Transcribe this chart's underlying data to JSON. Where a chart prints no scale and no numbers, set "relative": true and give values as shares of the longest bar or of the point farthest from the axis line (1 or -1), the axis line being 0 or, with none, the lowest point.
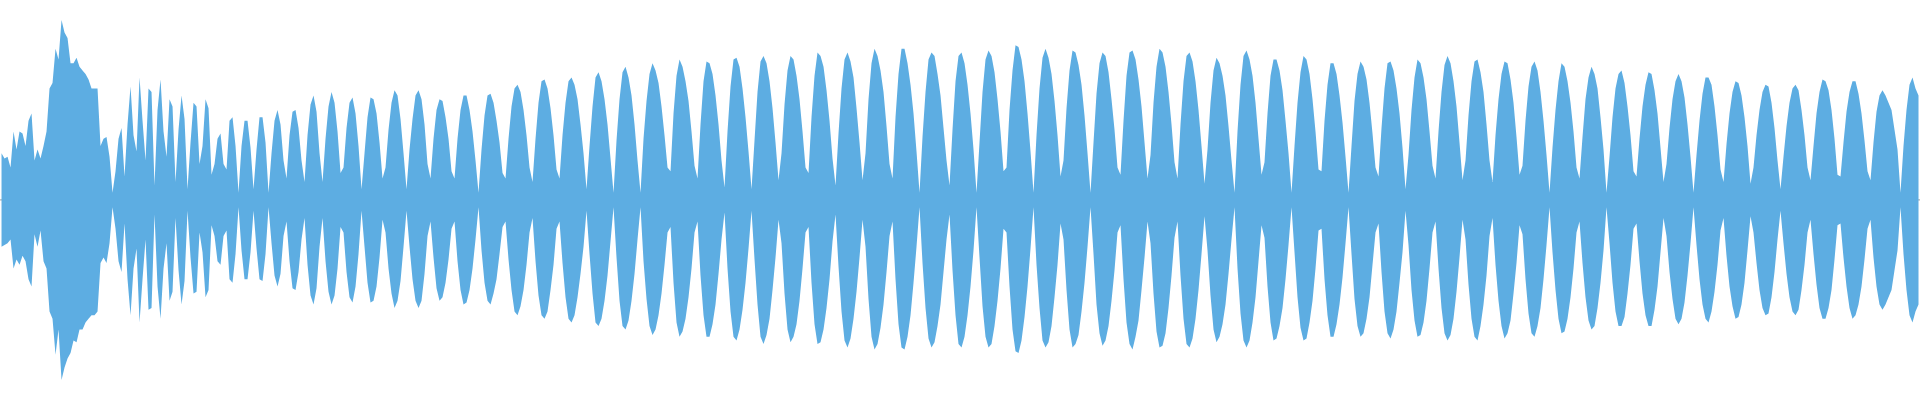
{
  "chart_data": {
    "type": "area",
    "relative": true,
    "categories": [
      null,
      null,
      null,
      null,
      null,
      null,
      null,
      null,
      null,
      null,
      null,
      null,
      null,
      null,
      null,
      null,
      null,
      null,
      null,
      null,
      null,
      null,
      null,
      null,
      null,
      null,
      null,
      null,
      null,
      null,
      null,
      null,
      null,
      null,
      null,
      null,
      null,
      null,
      null,
      null,
      null,
      null,
      null,
      null,
      null,
      null,
      null,
      null,
      null,
      null,
      null,
      null,
      null,
      null,
      null,
      null,
      null,
      null,
      null,
      null,
      null,
      null,
      null,
      null,
      null,
      null,
      null,
      null,
      null,
      null,
      null,
      null,
      null,
      null,
      null,
      null,
      null,
      null,
      null,
      null,
      null,
      null,
      null,
      null,
      null,
      null,
      null,
      null,
      null,
      null,
      null,
      null,
      null,
      null,
      null,
      null,
      null,
      null,
      null,
      null,
      null,
      null,
      null,
      null,
      null,
      null,
      null,
      null,
      null,
      null,
      null,
      null,
      null,
      null,
      null,
      null,
      null,
      null,
      null,
      null,
      null,
      null,
      null,
      null,
      null,
      null,
      null,
      null,
      null,
      null,
      null,
      null,
      null,
      null,
      null,
      null,
      null,
      null,
      null,
      null,
      null,
      null,
      null,
      null,
      null,
      null,
      null,
      null,
      null,
      null,
      null,
      null,
      null,
      null,
      null,
      null,
      null,
      null,
      null,
      null,
      null,
      null,
      null,
      null,
      null,
      null,
      null,
      null,
      null,
      null,
      null,
      null,
      null,
      null,
      null,
      null,
      null,
      null,
      null,
      null,
      null,
      null,
      null,
      null,
      null,
      null,
      null,
      null,
      null,
      null,
      null,
      null,
      null,
      null,
      null,
      null,
      null,
      null,
      null,
      null,
      null,
      null,
      null,
      null,
      null,
      null,
      null,
      null,
      null,
      null,
      null,
      null,
      null,
      null,
      null,
      null,
      null,
      null,
      null,
      null,
      null,
      null,
      null,
      null,
      null,
      null,
      null,
      null,
      null,
      null,
      null,
      null,
      null,
      null,
      null,
      null,
      null,
      null,
      null,
      null,
      null,
      null,
      null,
      null,
      null,
      null,
      null,
      null,
      null,
      null,
      null,
      null,
      null,
      null,
      null,
      null,
      null,
      null,
      null,
      null,
      null,
      null,
      null,
      null,
      null,
      null,
      null,
      null,
      null,
      null,
      null,
      null,
      null,
      null,
      null,
      null,
      null,
      null,
      null,
      null,
      null,
      null,
      null,
      null,
      null,
      null,
      null,
      null,
      null,
      null,
      null,
      null,
      null,
      null,
      null,
      null,
      null,
      null,
      null,
      null,
      null,
      null,
      null,
      null,
      null,
      null,
      null,
      null,
      null,
      null,
      null,
      null,
      null,
      null,
      null,
      null,
      null,
      null,
      null,
      null,
      null,
      null,
      null,
      null,
      null,
      null,
      null,
      null,
      null,
      null,
      null,
      null,
      null,
      null,
      null,
      null,
      null,
      null,
      null,
      null,
      null,
      null,
      null,
      null,
      null,
      null,
      null,
      null,
      null,
      null,
      null,
      null,
      null,
      null,
      null,
      null,
      null,
      null,
      null,
      null,
      null,
      null,
      null,
      null,
      null,
      null,
      null,
      null,
      null,
      null,
      null,
      null,
      null,
      null,
      null,
      null,
      null,
      null,
      null,
      null,
      null,
      null,
      null,
      null,
      null,
      null,
      null,
      null,
      null,
      null,
      null,
      null,
      null,
      null,
      null,
      null,
      null,
      null,
      null,
      null,
      null,
      null,
      null,
      null,
      null,
      null,
      null,
      null,
      null,
      null,
      null,
      null,
      null,
      null,
      null,
      null,
      null,
      null,
      null,
      null,
      null,
      null,
      null,
      null,
      null,
      null,
      null,
      null,
      null,
      null,
      null,
      null,
      null,
      null,
      null,
      null,
      null,
      null,
      null,
      null,
      null,
      null,
      null,
      null,
      null,
      null,
      null,
      null,
      null,
      null,
      null,
      null,
      null,
      null,
      null,
      null,
      null,
      null,
      null,
      null,
      null,
      null,
      null,
      null,
      null,
      null,
      null,
      null,
      null,
      null,
      null,
      null,
      null,
      null,
      null,
      null,
      null,
      null,
      null,
      null,
      null,
      null,
      null,
      null,
      null,
      null,
      null,
      null,
      null,
      null,
      null,
      null,
      null,
      null,
      null,
      null,
      null,
      null,
      null,
      null,
      null,
      null,
      null,
      null,
      null,
      null,
      null,
      null,
      null,
      null,
      null,
      null,
      null,
      null,
      null,
      null,
      null,
      null,
      null,
      null,
      null,
      null,
      null,
      null,
      null,
      null,
      null,
      null,
      null,
      null,
      null,
      null,
      null,
      null,
      null,
      null,
      null,
      null,
      null,
      null,
      null,
      null,
      null,
      null,
      null,
      null,
      null,
      null,
      null,
      null,
      null,
      null,
      null,
      null,
      null,
      null,
      null,
      null,
      null,
      null,
      null,
      null,
      null,
      null,
      null,
      null,
      null,
      null,
      null,
      null,
      null,
      null,
      null,
      null,
      null,
      null,
      null,
      null,
      null,
      null,
      null,
      null,
      null,
      null,
      null,
      null,
      null,
      null,
      null,
      null,
      null,
      null,
      null,
      null,
      null,
      null,
      null,
      null,
      null,
      null,
      null,
      null,
      null,
      null,
      null,
      null,
      null,
      null,
      null,
      null,
      null,
      null,
      null,
      null,
      null,
      null,
      null,
      null,
      null,
      null,
      null,
      null,
      null,
      null,
      null,
      null,
      null,
      null,
      null,
      null,
      null,
      null,
      null,
      null,
      null,
      null,
      null,
      null,
      null,
      null
    ],
    "series": [
      {
        "color": "#5dade2",
        "values": [
          0.26,
          0.23,
          0.24,
          0.18,
          0.38,
          0.28,
          0.38,
          0.37,
          0.3,
          0.44,
          0.48,
          0.22,
          0.28,
          0.23,
          0.3,
          0.38,
          0.62,
          0.65,
          0.84,
          0.78,
          1.0,
          0.93,
          0.9,
          0.76,
          0.76,
          0.79,
          0.74,
          0.72,
          0.7,
          0.67,
          0.62,
          0.62,
          0.62,
          0.3,
          0.34,
          0.35,
          0.24,
          0.04,
          0.16,
          0.34,
          0.4,
          0.13,
          0.42,
          0.63,
          0.36,
          0.27,
          0.68,
          0.44,
          0.22,
          0.62,
          0.6,
          0.08,
          0.5,
          0.67,
          0.38,
          0.24,
          0.56,
          0.52,
          0.1,
          0.39,
          0.58,
          0.45,
          0.06,
          0.32,
          0.54,
          0.52,
          0.2,
          0.3,
          0.56,
          0.51,
          0.14,
          0.2,
          0.34,
          0.37,
          0.2,
          0.17,
          0.44,
          0.46,
          0.3,
          0.04,
          0.3,
          0.44,
          0.44,
          0.29,
          0.06,
          0.28,
          0.46,
          0.46,
          0.32,
          0.04,
          0.26,
          0.44,
          0.5,
          0.42,
          0.22,
          0.12,
          0.36,
          0.49,
          0.5,
          0.4,
          0.22,
          0.1,
          0.36,
          0.53,
          0.58,
          0.49,
          0.26,
          0.1,
          0.34,
          0.52,
          0.6,
          0.54,
          0.38,
          0.15,
          0.18,
          0.4,
          0.54,
          0.57,
          0.48,
          0.3,
          0.06,
          0.26,
          0.46,
          0.57,
          0.56,
          0.48,
          0.32,
          0.12,
          0.18,
          0.39,
          0.54,
          0.61,
          0.58,
          0.45,
          0.26,
          0.06,
          0.28,
          0.45,
          0.58,
          0.61,
          0.56,
          0.42,
          0.2,
          0.12,
          0.34,
          0.5,
          0.56,
          0.55,
          0.46,
          0.34,
          0.16,
          0.12,
          0.34,
          0.5,
          0.58,
          0.58,
          0.5,
          0.38,
          0.22,
          0.04,
          0.28,
          0.47,
          0.58,
          0.59,
          0.54,
          0.44,
          0.32,
          0.15,
          0.12,
          0.34,
          0.52,
          0.62,
          0.64,
          0.6,
          0.5,
          0.36,
          0.18,
          0.1,
          0.34,
          0.54,
          0.66,
          0.67,
          0.62,
          0.51,
          0.36,
          0.17,
          0.12,
          0.36,
          0.54,
          0.66,
          0.68,
          0.64,
          0.56,
          0.42,
          0.26,
          0.06,
          0.3,
          0.52,
          0.68,
          0.71,
          0.66,
          0.56,
          0.42,
          0.23,
          0.04,
          0.33,
          0.56,
          0.71,
          0.74,
          0.68,
          0.58,
          0.42,
          0.22,
          0.04,
          0.34,
          0.55,
          0.7,
          0.76,
          0.72,
          0.65,
          0.52,
          0.36,
          0.18,
          0.16,
          0.48,
          0.69,
          0.78,
          0.74,
          0.66,
          0.55,
          0.38,
          0.19,
          0.12,
          0.42,
          0.66,
          0.77,
          0.76,
          0.7,
          0.58,
          0.42,
          0.22,
          0.07,
          0.38,
          0.63,
          0.78,
          0.79,
          0.74,
          0.62,
          0.46,
          0.27,
          0.06,
          0.33,
          0.6,
          0.77,
          0.8,
          0.76,
          0.66,
          0.51,
          0.32,
          0.11,
          0.26,
          0.53,
          0.72,
          0.8,
          0.78,
          0.69,
          0.56,
          0.38,
          0.18,
          0.15,
          0.46,
          0.69,
          0.82,
          0.8,
          0.74,
          0.61,
          0.44,
          0.23,
          0.08,
          0.37,
          0.62,
          0.78,
          0.82,
          0.77,
          0.68,
          0.51,
          0.32,
          0.11,
          0.26,
          0.56,
          0.76,
          0.84,
          0.8,
          0.72,
          0.6,
          0.41,
          0.2,
          0.12,
          0.46,
          0.7,
          0.84,
          0.84,
          0.76,
          0.64,
          0.48,
          0.27,
          0.04,
          0.35,
          0.6,
          0.78,
          0.82,
          0.8,
          0.7,
          0.58,
          0.4,
          0.22,
          0.08,
          0.39,
          0.66,
          0.8,
          0.82,
          0.76,
          0.64,
          0.48,
          0.28,
          0.04,
          0.32,
          0.6,
          0.78,
          0.83,
          0.8,
          0.71,
          0.56,
          0.38,
          0.16,
          0.18,
          0.5,
          0.72,
          0.86,
          0.85,
          0.78,
          0.66,
          0.48,
          0.27,
          0.04,
          0.36,
          0.62,
          0.79,
          0.84,
          0.79,
          0.7,
          0.55,
          0.36,
          0.13,
          0.22,
          0.51,
          0.72,
          0.83,
          0.82,
          0.75,
          0.64,
          0.47,
          0.26,
          0.04,
          0.32,
          0.59,
          0.76,
          0.82,
          0.8,
          0.71,
          0.56,
          0.39,
          0.18,
          0.14,
          0.44,
          0.69,
          0.82,
          0.83,
          0.78,
          0.67,
          0.52,
          0.32,
          0.12,
          0.25,
          0.54,
          0.74,
          0.84,
          0.82,
          0.74,
          0.6,
          0.42,
          0.21,
          0.12,
          0.42,
          0.66,
          0.8,
          0.82,
          0.77,
          0.66,
          0.5,
          0.3,
          0.09,
          0.28,
          0.54,
          0.72,
          0.79,
          0.76,
          0.69,
          0.58,
          0.41,
          0.22,
          0.04,
          0.38,
          0.64,
          0.8,
          0.83,
          0.78,
          0.69,
          0.54,
          0.34,
          0.14,
          0.21,
          0.48,
          0.69,
          0.78,
          0.78,
          0.72,
          0.61,
          0.44,
          0.26,
          0.04,
          0.3,
          0.54,
          0.71,
          0.8,
          0.78,
          0.7,
          0.56,
          0.38,
          0.17,
          0.16,
          0.44,
          0.64,
          0.76,
          0.76,
          0.7,
          0.58,
          0.43,
          0.24,
          0.04,
          0.3,
          0.55,
          0.7,
          0.77,
          0.74,
          0.67,
          0.54,
          0.37,
          0.18,
          0.13,
          0.4,
          0.62,
          0.76,
          0.77,
          0.72,
          0.62,
          0.48,
          0.29,
          0.06,
          0.25,
          0.5,
          0.68,
          0.78,
          0.76,
          0.68,
          0.56,
          0.38,
          0.19,
          0.12,
          0.38,
          0.6,
          0.75,
          0.8,
          0.76,
          0.66,
          0.52,
          0.32,
          0.11,
          0.22,
          0.47,
          0.66,
          0.77,
          0.78,
          0.71,
          0.6,
          0.42,
          0.22,
          0.1,
          0.36,
          0.56,
          0.7,
          0.77,
          0.76,
          0.67,
          0.54,
          0.35,
          0.14,
          0.19,
          0.44,
          0.63,
          0.74,
          0.77,
          0.72,
          0.6,
          0.44,
          0.25,
          0.04,
          0.29,
          0.5,
          0.66,
          0.76,
          0.74,
          0.66,
          0.54,
          0.38,
          0.18,
          0.12,
          0.35,
          0.56,
          0.68,
          0.74,
          0.7,
          0.62,
          0.46,
          0.28,
          0.04,
          0.24,
          0.46,
          0.62,
          0.7,
          0.72,
          0.65,
          0.52,
          0.36,
          0.16,
          0.13,
          0.34,
          0.52,
          0.64,
          0.71,
          0.7,
          0.61,
          0.48,
          0.29,
          0.1,
          0.2,
          0.4,
          0.56,
          0.66,
          0.7,
          0.66,
          0.57,
          0.42,
          0.24,
          0.04,
          0.25,
          0.44,
          0.59,
          0.68,
          0.68,
          0.64,
          0.52,
          0.36,
          0.17,
          0.1,
          0.31,
          0.48,
          0.6,
          0.66,
          0.65,
          0.58,
          0.46,
          0.3,
          0.09,
          0.18,
          0.36,
          0.5,
          0.6,
          0.64,
          0.63,
          0.54,
          0.4,
          0.22,
          0.06,
          0.24,
          0.41,
          0.54,
          0.62,
          0.64,
          0.61,
          0.5,
          0.36,
          0.18,
          0.11,
          0.3,
          0.48,
          0.6,
          0.67,
          0.66,
          0.61,
          0.5,
          0.34,
          0.14,
          0.13,
          0.32,
          0.49,
          0.6,
          0.66,
          0.66,
          0.59,
          0.48,
          0.33,
          0.16,
          0.11,
          0.32,
          0.49,
          0.58,
          0.61,
          0.58,
          0.54,
          0.5,
          0.39,
          0.28,
          0.04,
          0.3,
          0.5,
          0.64,
          0.68,
          0.62,
          0.58
        ]
      },
      {
        "color": "#5dade2",
        "values": [
          -0.26,
          -0.25,
          -0.24,
          -0.22,
          -0.38,
          -0.33,
          -0.36,
          -0.31,
          -0.34,
          -0.44,
          -0.48,
          -0.19,
          -0.26,
          -0.17,
          -0.34,
          -0.38,
          -0.62,
          -0.66,
          -0.86,
          -0.72,
          -1.0,
          -0.93,
          -0.88,
          -0.85,
          -0.78,
          -0.79,
          -0.72,
          -0.72,
          -0.68,
          -0.66,
          -0.64,
          -0.64,
          -0.62,
          -0.35,
          -0.32,
          -0.35,
          -0.24,
          -0.04,
          -0.16,
          -0.34,
          -0.4,
          -0.13,
          -0.44,
          -0.64,
          -0.38,
          -0.27,
          -0.68,
          -0.44,
          -0.22,
          -0.61,
          -0.6,
          -0.08,
          -0.48,
          -0.66,
          -0.38,
          -0.24,
          -0.56,
          -0.51,
          -0.1,
          -0.39,
          -0.58,
          -0.45,
          -0.06,
          -0.32,
          -0.52,
          -0.51,
          -0.18,
          -0.29,
          -0.54,
          -0.5,
          -0.14,
          -0.2,
          -0.34,
          -0.36,
          -0.2,
          -0.17,
          -0.44,
          -0.46,
          -0.3,
          -0.04,
          -0.28,
          -0.44,
          -0.44,
          -0.29,
          -0.06,
          -0.27,
          -0.44,
          -0.45,
          -0.3,
          -0.04,
          -0.24,
          -0.42,
          -0.48,
          -0.41,
          -0.2,
          -0.12,
          -0.34,
          -0.49,
          -0.5,
          -0.4,
          -0.22,
          -0.1,
          -0.36,
          -0.53,
          -0.58,
          -0.49,
          -0.26,
          -0.1,
          -0.34,
          -0.51,
          -0.58,
          -0.53,
          -0.38,
          -0.15,
          -0.18,
          -0.4,
          -0.54,
          -0.57,
          -0.48,
          -0.3,
          -0.06,
          -0.26,
          -0.46,
          -0.57,
          -0.56,
          -0.48,
          -0.32,
          -0.11,
          -0.18,
          -0.38,
          -0.52,
          -0.6,
          -0.56,
          -0.45,
          -0.26,
          -0.06,
          -0.26,
          -0.44,
          -0.56,
          -0.6,
          -0.56,
          -0.41,
          -0.2,
          -0.12,
          -0.32,
          -0.49,
          -0.56,
          -0.54,
          -0.46,
          -0.33,
          -0.16,
          -0.12,
          -0.34,
          -0.5,
          -0.58,
          -0.57,
          -0.5,
          -0.38,
          -0.22,
          -0.04,
          -0.28,
          -0.46,
          -0.56,
          -0.58,
          -0.52,
          -0.44,
          -0.3,
          -0.15,
          -0.12,
          -0.33,
          -0.5,
          -0.62,
          -0.64,
          -0.59,
          -0.5,
          -0.36,
          -0.18,
          -0.1,
          -0.34,
          -0.53,
          -0.64,
          -0.66,
          -0.62,
          -0.5,
          -0.36,
          -0.16,
          -0.12,
          -0.35,
          -0.54,
          -0.66,
          -0.68,
          -0.64,
          -0.54,
          -0.41,
          -0.26,
          -0.06,
          -0.3,
          -0.52,
          -0.68,
          -0.7,
          -0.66,
          -0.56,
          -0.42,
          -0.23,
          -0.04,
          -0.32,
          -0.56,
          -0.7,
          -0.72,
          -0.67,
          -0.56,
          -0.41,
          -0.22,
          -0.04,
          -0.34,
          -0.55,
          -0.7,
          -0.75,
          -0.72,
          -0.64,
          -0.52,
          -0.36,
          -0.18,
          -0.15,
          -0.46,
          -0.68,
          -0.76,
          -0.73,
          -0.66,
          -0.54,
          -0.38,
          -0.18,
          -0.12,
          -0.42,
          -0.64,
          -0.76,
          -0.76,
          -0.69,
          -0.58,
          -0.41,
          -0.22,
          -0.07,
          -0.38,
          -0.62,
          -0.76,
          -0.78,
          -0.72,
          -0.61,
          -0.46,
          -0.27,
          -0.06,
          -0.33,
          -0.58,
          -0.76,
          -0.8,
          -0.75,
          -0.66,
          -0.5,
          -0.32,
          -0.11,
          -0.24,
          -0.52,
          -0.72,
          -0.79,
          -0.76,
          -0.69,
          -0.56,
          -0.38,
          -0.18,
          -0.15,
          -0.46,
          -0.69,
          -0.8,
          -0.79,
          -0.72,
          -0.6,
          -0.44,
          -0.23,
          -0.08,
          -0.37,
          -0.62,
          -0.78,
          -0.82,
          -0.77,
          -0.66,
          -0.51,
          -0.32,
          -0.11,
          -0.26,
          -0.55,
          -0.76,
          -0.83,
          -0.8,
          -0.71,
          -0.58,
          -0.4,
          -0.2,
          -0.12,
          -0.44,
          -0.69,
          -0.82,
          -0.83,
          -0.76,
          -0.64,
          -0.46,
          -0.26,
          -0.04,
          -0.35,
          -0.6,
          -0.77,
          -0.82,
          -0.79,
          -0.7,
          -0.58,
          -0.4,
          -0.22,
          -0.08,
          -0.39,
          -0.64,
          -0.8,
          -0.82,
          -0.76,
          -0.64,
          -0.48,
          -0.28,
          -0.04,
          -0.32,
          -0.59,
          -0.76,
          -0.82,
          -0.8,
          -0.7,
          -0.56,
          -0.38,
          -0.16,
          -0.18,
          -0.48,
          -0.72,
          -0.84,
          -0.85,
          -0.78,
          -0.65,
          -0.48,
          -0.27,
          -0.04,
          -0.36,
          -0.6,
          -0.78,
          -0.82,
          -0.79,
          -0.7,
          -0.54,
          -0.36,
          -0.13,
          -0.22,
          -0.5,
          -0.72,
          -0.82,
          -0.8,
          -0.75,
          -0.62,
          -0.46,
          -0.26,
          -0.04,
          -0.3,
          -0.58,
          -0.74,
          -0.81,
          -0.78,
          -0.7,
          -0.56,
          -0.39,
          -0.18,
          -0.14,
          -0.44,
          -0.68,
          -0.8,
          -0.83,
          -0.76,
          -0.67,
          -0.5,
          -0.32,
          -0.12,
          -0.24,
          -0.52,
          -0.73,
          -0.82,
          -0.81,
          -0.74,
          -0.6,
          -0.42,
          -0.21,
          -0.12,
          -0.42,
          -0.66,
          -0.8,
          -0.82,
          -0.77,
          -0.66,
          -0.5,
          -0.3,
          -0.09,
          -0.28,
          -0.53,
          -0.72,
          -0.79,
          -0.76,
          -0.69,
          -0.58,
          -0.41,
          -0.22,
          -0.04,
          -0.38,
          -0.63,
          -0.78,
          -0.82,
          -0.78,
          -0.68,
          -0.54,
          -0.34,
          -0.14,
          -0.21,
          -0.48,
          -0.68,
          -0.78,
          -0.77,
          -0.7,
          -0.6,
          -0.44,
          -0.25,
          -0.04,
          -0.29,
          -0.54,
          -0.71,
          -0.78,
          -0.77,
          -0.68,
          -0.56,
          -0.38,
          -0.17,
          -0.16,
          -0.44,
          -0.64,
          -0.76,
          -0.76,
          -0.69,
          -0.58,
          -0.43,
          -0.24,
          -0.04,
          -0.3,
          -0.55,
          -0.7,
          -0.76,
          -0.74,
          -0.66,
          -0.54,
          -0.36,
          -0.18,
          -0.13,
          -0.4,
          -0.62,
          -0.74,
          -0.77,
          -0.72,
          -0.62,
          -0.46,
          -0.29,
          -0.06,
          -0.25,
          -0.5,
          -0.67,
          -0.76,
          -0.75,
          -0.68,
          -0.56,
          -0.38,
          -0.18,
          -0.12,
          -0.38,
          -0.6,
          -0.74,
          -0.78,
          -0.75,
          -0.66,
          -0.51,
          -0.32,
          -0.11,
          -0.22,
          -0.47,
          -0.66,
          -0.76,
          -0.78,
          -0.7,
          -0.58,
          -0.42,
          -0.2,
          -0.1,
          -0.36,
          -0.56,
          -0.7,
          -0.77,
          -0.74,
          -0.67,
          -0.52,
          -0.35,
          -0.14,
          -0.19,
          -0.44,
          -0.63,
          -0.74,
          -0.76,
          -0.7,
          -0.6,
          -0.44,
          -0.25,
          -0.04,
          -0.29,
          -0.5,
          -0.66,
          -0.74,
          -0.73,
          -0.66,
          -0.54,
          -0.38,
          -0.18,
          -0.12,
          -0.35,
          -0.54,
          -0.67,
          -0.72,
          -0.7,
          -0.6,
          -0.46,
          -0.28,
          -0.04,
          -0.24,
          -0.46,
          -0.62,
          -0.7,
          -0.7,
          -0.65,
          -0.52,
          -0.36,
          -0.16,
          -0.13,
          -0.34,
          -0.52,
          -0.64,
          -0.7,
          -0.7,
          -0.61,
          -0.48,
          -0.29,
          -0.1,
          -0.2,
          -0.4,
          -0.55,
          -0.66,
          -0.69,
          -0.66,
          -0.57,
          -0.42,
          -0.24,
          -0.04,
          -0.25,
          -0.44,
          -0.58,
          -0.66,
          -0.68,
          -0.62,
          -0.51,
          -0.36,
          -0.17,
          -0.1,
          -0.31,
          -0.48,
          -0.59,
          -0.66,
          -0.65,
          -0.58,
          -0.46,
          -0.28,
          -0.09,
          -0.18,
          -0.35,
          -0.5,
          -0.6,
          -0.64,
          -0.63,
          -0.54,
          -0.4,
          -0.22,
          -0.06,
          -0.24,
          -0.41,
          -0.54,
          -0.62,
          -0.64,
          -0.61,
          -0.5,
          -0.36,
          -0.18,
          -0.11,
          -0.3,
          -0.47,
          -0.6,
          -0.66,
          -0.66,
          -0.6,
          -0.5,
          -0.33,
          -0.14,
          -0.13,
          -0.32,
          -0.48,
          -0.6,
          -0.66,
          -0.64,
          -0.58,
          -0.48,
          -0.33,
          -0.16,
          -0.11,
          -0.32,
          -0.48,
          -0.58,
          -0.61,
          -0.58,
          -0.54,
          -0.5,
          -0.39,
          -0.28,
          -0.04,
          -0.3,
          -0.5,
          -0.64,
          -0.68,
          -0.62,
          -0.58
        ]
      }
    ]
  }
}
